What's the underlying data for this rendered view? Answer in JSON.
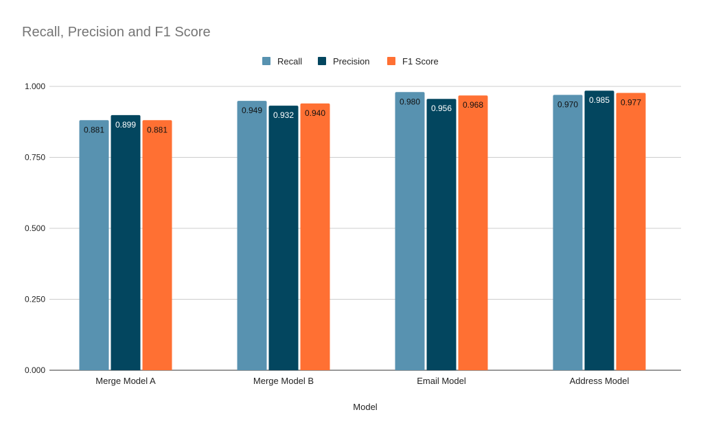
{
  "chart_data": {
    "type": "bar",
    "title": "Recall, Precision and F1 Score",
    "xlabel": "Model",
    "ylabel": "",
    "ylim": [
      0,
      1
    ],
    "yticks": [
      "0.000",
      "0.250",
      "0.500",
      "0.750",
      "1.000"
    ],
    "grid": true,
    "legend_position": "top",
    "categories": [
      "Merge Model A",
      "Merge Model B",
      "Email Model",
      "Address Model"
    ],
    "series": [
      {
        "name": "Recall",
        "color": "#5892B0",
        "label_color": "#111111",
        "values": [
          0.881,
          0.949,
          0.98,
          0.97
        ],
        "labels": [
          "0.881",
          "0.949",
          "0.980",
          "0.970"
        ]
      },
      {
        "name": "Precision",
        "color": "#03465F",
        "label_color": "#FFFFFF",
        "values": [
          0.899,
          0.932,
          0.956,
          0.985
        ],
        "labels": [
          "0.899",
          "0.932",
          "0.956",
          "0.985"
        ]
      },
      {
        "name": "F1 Score",
        "color": "#FF7033",
        "label_color": "#111111",
        "values": [
          0.881,
          0.94,
          0.968,
          0.977
        ],
        "labels": [
          "0.881",
          "0.940",
          "0.968",
          "0.977"
        ]
      }
    ]
  }
}
